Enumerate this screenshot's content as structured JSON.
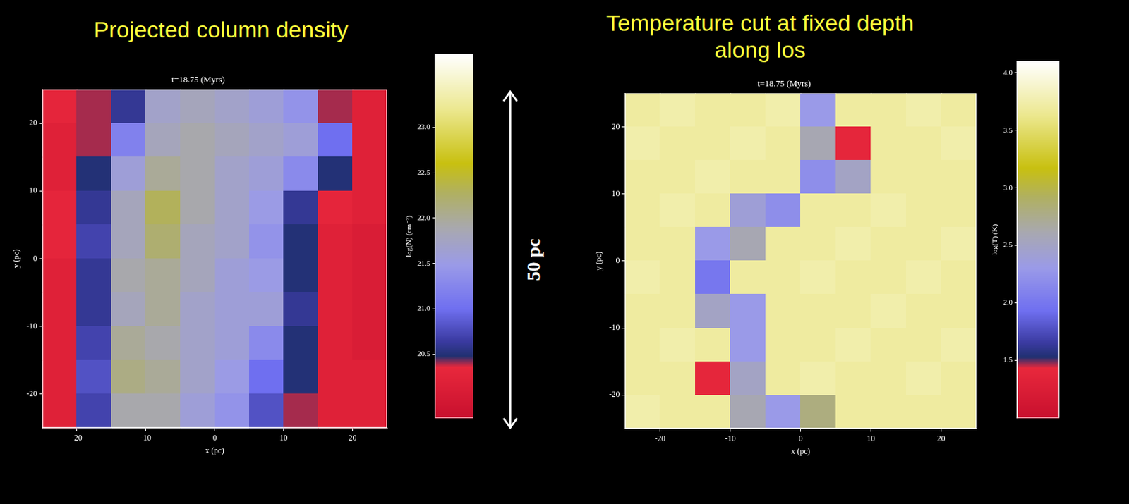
{
  "chart_data": [
    {
      "type": "heatmap",
      "title": "Projected column density",
      "subtitle": "t=18.75 (Myrs)",
      "x_label": "x (pc)",
      "y_label": "y (pc)",
      "xlim": [
        -25,
        25
      ],
      "ylim": [
        -25,
        25
      ],
      "xticks": [
        -20,
        -10,
        0,
        10,
        20
      ],
      "yticks": [
        -20,
        -10,
        0,
        10,
        20
      ],
      "grid": false,
      "x": [
        -22.5,
        -17.5,
        -12.5,
        -7.5,
        -2.5,
        2.5,
        7.5,
        12.5,
        17.5,
        22.5
      ],
      "y": [
        22.5,
        17.5,
        12.5,
        7.5,
        2.5,
        -2.5,
        -7.5,
        -12.5,
        -17.5,
        -22.5
      ],
      "cells": [
        [
          20.3,
          20.4,
          20.6,
          21.7,
          21.8,
          21.7,
          21.6,
          21.4,
          20.4,
          20.2
        ],
        [
          20.2,
          20.4,
          21.2,
          21.8,
          21.9,
          21.8,
          21.7,
          21.6,
          21.0,
          20.2
        ],
        [
          20.2,
          20.5,
          21.6,
          22.0,
          21.9,
          21.7,
          21.6,
          21.3,
          20.5,
          20.2
        ],
        [
          20.3,
          20.6,
          21.8,
          22.3,
          21.9,
          21.7,
          21.5,
          20.6,
          20.3,
          20.2
        ],
        [
          20.3,
          20.7,
          21.8,
          22.2,
          21.8,
          21.7,
          21.4,
          20.5,
          20.2,
          20.1
        ],
        [
          20.2,
          20.6,
          21.9,
          22.0,
          21.8,
          21.6,
          21.5,
          20.5,
          20.2,
          20.1
        ],
        [
          20.2,
          20.6,
          21.8,
          22.0,
          21.7,
          21.6,
          21.6,
          20.6,
          20.2,
          20.1
        ],
        [
          20.2,
          20.7,
          22.0,
          21.9,
          21.7,
          21.6,
          21.3,
          20.5,
          20.2,
          20.1
        ],
        [
          20.2,
          20.8,
          22.1,
          22.0,
          21.7,
          21.5,
          21.0,
          20.5,
          20.2,
          20.2
        ],
        [
          20.2,
          20.7,
          21.9,
          21.9,
          21.6,
          21.4,
          20.8,
          20.4,
          20.2,
          20.2
        ]
      ],
      "colorbar": {
        "label": "log(N) (cm⁻²)",
        "range": [
          19.8,
          23.8
        ],
        "ticks": [
          20.5,
          {
            "value": 21,
            "label": "21.0"
          },
          21.5,
          {
            "value": 22,
            "label": "22.0"
          },
          22.5,
          {
            "value": 23,
            "label": "23.0"
          }
        ]
      }
    },
    {
      "type": "heatmap",
      "title": "Temperature cut at fixed depth along los",
      "subtitle": "t=18.75 (Myrs)",
      "x_label": "x (pc)",
      "y_label": "y (pc)",
      "xlim": [
        -25,
        25
      ],
      "ylim": [
        -25,
        25
      ],
      "xticks": [
        -20,
        -10,
        0,
        10,
        20
      ],
      "yticks": [
        -20,
        -10,
        0,
        10,
        20
      ],
      "grid": false,
      "x": [
        -22.5,
        -17.5,
        -12.5,
        -7.5,
        -2.5,
        2.5,
        7.5,
        12.5,
        17.5,
        22.5
      ],
      "y": [
        22.5,
        17.5,
        12.5,
        7.5,
        2.5,
        -2.5,
        -7.5,
        -12.5,
        -17.5,
        -22.5
      ],
      "cells": [
        [
          3.7,
          3.75,
          3.7,
          3.7,
          3.75,
          2.3,
          3.7,
          3.7,
          3.75,
          3.7
        ],
        [
          3.75,
          3.7,
          3.7,
          3.75,
          3.7,
          2.6,
          1.4,
          3.7,
          3.7,
          3.75
        ],
        [
          3.7,
          3.7,
          3.75,
          3.7,
          3.7,
          2.2,
          2.5,
          3.7,
          3.7,
          3.7
        ],
        [
          3.7,
          3.75,
          3.7,
          2.4,
          2.2,
          3.7,
          3.7,
          3.75,
          3.7,
          3.7
        ],
        [
          3.7,
          3.7,
          2.3,
          2.6,
          3.7,
          3.7,
          3.75,
          3.7,
          3.7,
          3.75
        ],
        [
          3.75,
          3.7,
          2.0,
          3.7,
          3.7,
          3.75,
          3.7,
          3.7,
          3.75,
          3.7
        ],
        [
          3.7,
          3.7,
          2.5,
          2.3,
          3.7,
          3.7,
          3.7,
          3.75,
          3.7,
          3.7
        ],
        [
          3.7,
          3.75,
          3.7,
          2.3,
          3.7,
          3.7,
          3.75,
          3.7,
          3.7,
          3.75
        ],
        [
          3.7,
          3.7,
          1.4,
          2.5,
          3.7,
          3.75,
          3.7,
          3.7,
          3.75,
          3.7
        ],
        [
          3.75,
          3.7,
          3.7,
          2.6,
          2.3,
          2.8,
          3.7,
          3.7,
          3.7,
          3.7
        ]
      ],
      "colorbar": {
        "label": "log(T) (K)",
        "range": [
          1.0,
          4.1
        ],
        "ticks": [
          1.5,
          {
            "value": 2,
            "label": "2.0"
          },
          2.5,
          {
            "value": 3,
            "label": "3.0"
          },
          3.5,
          {
            "value": 4,
            "label": "4.0"
          }
        ]
      }
    }
  ],
  "annotations": [
    {
      "text": "50 pc"
    }
  ]
}
